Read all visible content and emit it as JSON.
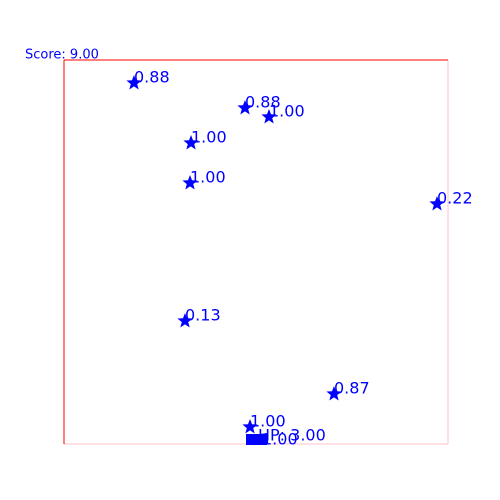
{
  "score": "Score: 9.00",
  "items": [
    {
      "label": "0.88"
    },
    {
      "label": "0.88"
    },
    {
      "label": "1.00"
    },
    {
      "label": "1.00"
    },
    {
      "label": "1.00"
    },
    {
      "label": "0.22"
    },
    {
      "label": "0.13"
    },
    {
      "label": "0.87"
    },
    {
      "label": "1.00"
    }
  ],
  "player": {
    "hp": "HP: 3.00",
    "label": "1.00"
  }
}
